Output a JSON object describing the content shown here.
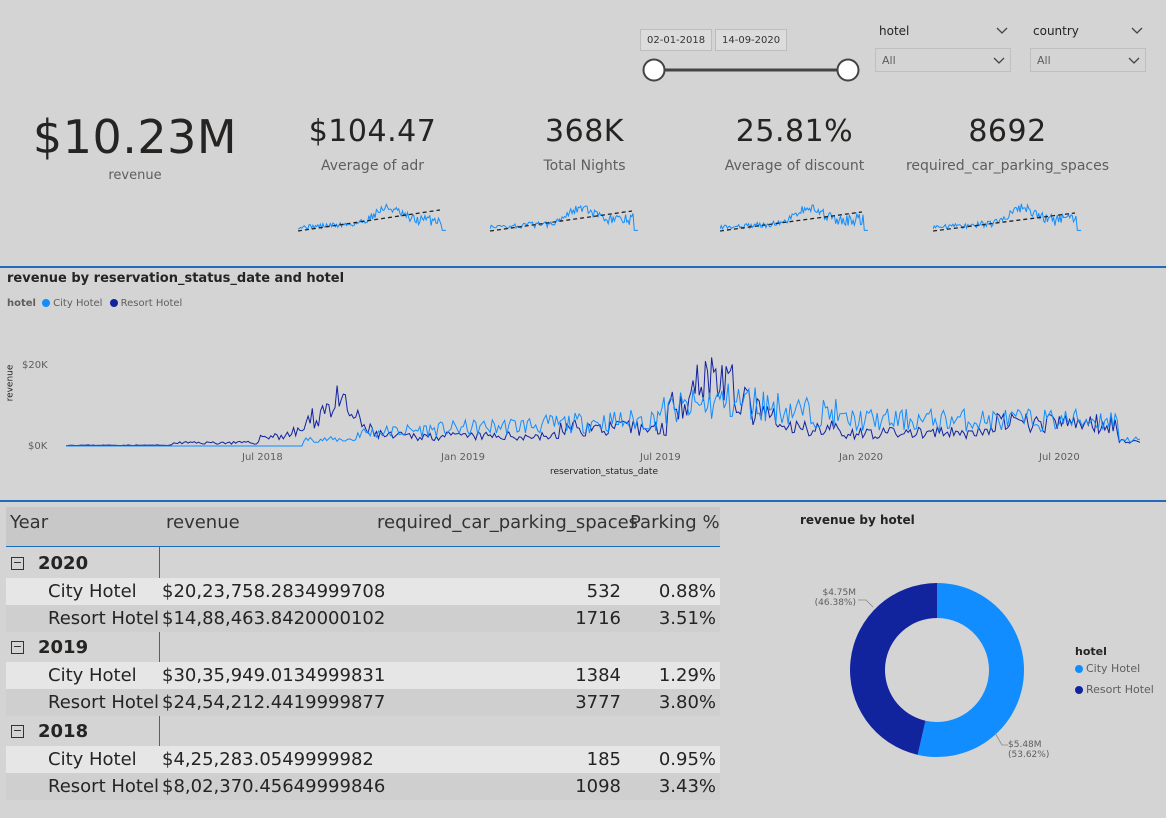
{
  "filters": {
    "date_start": "02-01-2018",
    "date_end": "14-09-2020",
    "hotel": {
      "title": "hotel",
      "value": "All"
    },
    "country": {
      "title": "country",
      "value": "All"
    },
    "slider": {
      "start_fraction": 0,
      "end_fraction": 1
    }
  },
  "kpis": {
    "revenue": {
      "value": "$10.23M",
      "label": "revenue"
    },
    "adr": {
      "value": "$104.47",
      "label": "Average of adr"
    },
    "nights": {
      "value": "368K",
      "label": "Total Nights"
    },
    "discount": {
      "value": "25.81%",
      "label": "Average of discount"
    },
    "parking": {
      "value": "8692",
      "label": "required_car_parking_spaces"
    }
  },
  "colors": {
    "city_hotel": "#118dff",
    "resort_hotel": "#12239e",
    "accent": "#1f6bbf"
  },
  "line_chart": {
    "title": "revenue by reservation_status_date and hotel",
    "legend_title": "hotel",
    "legend": [
      "City Hotel",
      "Resort Hotel"
    ],
    "ylabel": "revenue",
    "xlabel": "reservation_status_date",
    "yticks": [
      "$20K",
      "$0K"
    ],
    "xticks": [
      "Jul 2018",
      "Jan 2019",
      "Jul 2019",
      "Jan 2020",
      "Jul 2020"
    ]
  },
  "table": {
    "headers": [
      "Year",
      "revenue",
      "required_car_parking_spaces",
      "Parking %"
    ],
    "groups": [
      {
        "year": "2020",
        "rows": [
          {
            "hotel": "City Hotel",
            "revenue": "$20,23,758.2834999708",
            "parking": "532",
            "pct": "0.88%"
          },
          {
            "hotel": "Resort Hotel",
            "revenue": "$14,88,463.8420000102",
            "parking": "1716",
            "pct": "3.51%"
          }
        ]
      },
      {
        "year": "2019",
        "rows": [
          {
            "hotel": "City Hotel",
            "revenue": "$30,35,949.0134999831",
            "parking": "1384",
            "pct": "1.29%"
          },
          {
            "hotel": "Resort Hotel",
            "revenue": "$24,54,212.4419999877",
            "parking": "3777",
            "pct": "3.80%"
          }
        ]
      },
      {
        "year": "2018",
        "rows": [
          {
            "hotel": "City Hotel",
            "revenue": "$4,25,283.0549999982",
            "parking": "185",
            "pct": "0.95%"
          },
          {
            "hotel": "Resort Hotel",
            "revenue": "$8,02,370.45649999846",
            "parking": "1098",
            "pct": "3.43%"
          }
        ]
      }
    ]
  },
  "donut": {
    "title": "revenue by hotel",
    "legend_title": "hotel",
    "legend": [
      "City Hotel",
      "Resort Hotel"
    ],
    "city_label": "$5.48M",
    "city_pct": "(53.62%)",
    "resort_label": "$4.75M",
    "resort_pct": "(46.38%)"
  },
  "chart_data": {
    "type": "pie",
    "title": "revenue by hotel",
    "categories": [
      "City Hotel",
      "Resort Hotel"
    ],
    "values": [
      5.48,
      4.75
    ],
    "percentages": [
      53.62,
      46.38
    ],
    "units": "$M"
  }
}
